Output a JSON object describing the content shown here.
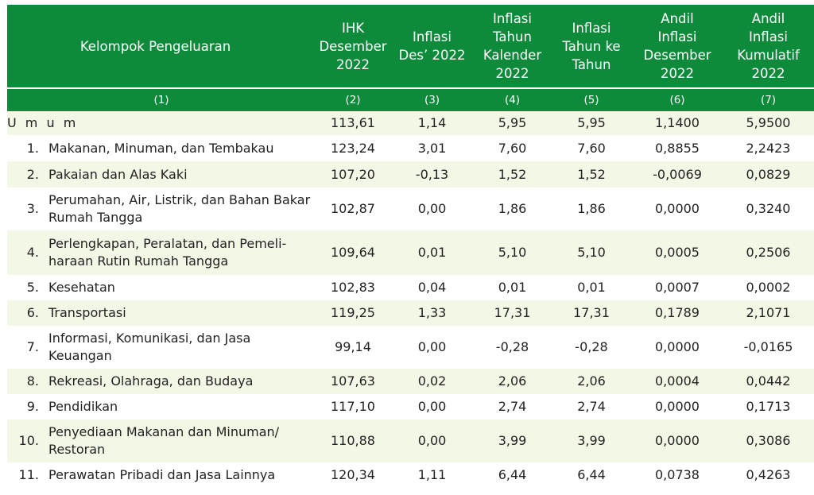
{
  "table": {
    "headers": [
      "Kelompok Pengeluaran",
      "IHK Desember 2022",
      "Inflasi Des’ 2022",
      "Inflasi Tahun Kalender 2022",
      "Inflasi Tahun ke Tahun",
      "Andil Inflasi Desember 2022",
      "Andil Inflasi Kumulatif 2022"
    ],
    "header_lines": [
      [
        "Kelompok Pengeluaran"
      ],
      [
        "IHK",
        "Desember",
        "2022"
      ],
      [
        "Inflasi",
        "Des’ 2022"
      ],
      [
        "Inflasi",
        "Tahun",
        "Kalender",
        "2022"
      ],
      [
        "Inflasi",
        "Tahun ke",
        "Tahun"
      ],
      [
        "Andil",
        "Inflasi",
        "Desember",
        "2022"
      ],
      [
        "Andil",
        "Inflasi",
        "Kumulatif",
        "2022"
      ]
    ],
    "col_numbers": [
      "(1)",
      "(2)",
      "(3)",
      "(4)",
      "(5)",
      "(6)",
      "(7)"
    ],
    "rows": [
      {
        "no": "",
        "label": "U m u m",
        "values": [
          "113,61",
          "1,14",
          "5,95",
          "5,95",
          "1,1400",
          "5,9500"
        ]
      },
      {
        "no": "1.",
        "label": "Makanan, Minuman, dan Tembakau",
        "values": [
          "123,24",
          "3,01",
          "7,60",
          "7,60",
          "0,8855",
          "2,2423"
        ]
      },
      {
        "no": "2.",
        "label": "Pakaian dan Alas Kaki",
        "values": [
          "107,20",
          "-0,13",
          "1,52",
          "1,52",
          "-0,0069",
          "0,0829"
        ]
      },
      {
        "no": "3.",
        "label": "Perumahan, Air, Listrik, dan Bahan Bakar Rumah Tangga",
        "values": [
          "102,87",
          "0,00",
          "1,86",
          "1,86",
          "0,0000",
          "0,3240"
        ]
      },
      {
        "no": "4.",
        "label": "Perlengkapan, Peralatan, dan Pemeli-haraan Rutin Rumah Tangga",
        "values": [
          "109,64",
          "0,01",
          "5,10",
          "5,10",
          "0,0005",
          "0,2506"
        ]
      },
      {
        "no": "5.",
        "label": "Kesehatan",
        "values": [
          "102,83",
          "0,04",
          "0,01",
          "0,01",
          "0,0007",
          "0,0002"
        ]
      },
      {
        "no": "6.",
        "label": "Transportasi",
        "values": [
          "119,25",
          "1,33",
          "17,31",
          "17,31",
          "0,1789",
          "2,1071"
        ]
      },
      {
        "no": "7.",
        "label": "Informasi, Komunikasi, dan Jasa Keuangan",
        "values": [
          "99,14",
          "0,00",
          "-0,28",
          "-0,28",
          "0,0000",
          "-0,0165"
        ]
      },
      {
        "no": "8.",
        "label": "Rekreasi, Olahraga, dan Budaya",
        "values": [
          "107,63",
          "0,02",
          "2,06",
          "2,06",
          "0,0004",
          "0,0442"
        ]
      },
      {
        "no": "9.",
        "label": "Pendidikan",
        "values": [
          "117,10",
          "0,00",
          "2,74",
          "2,74",
          "0,0000",
          "0,1713"
        ]
      },
      {
        "no": "10.",
        "label": "Penyediaan Makanan dan Minuman/ Restoran",
        "values": [
          "110,88",
          "0,00",
          "3,99",
          "3,99",
          "0,0000",
          "0,3086"
        ]
      },
      {
        "no": "11.",
        "label": "Perawatan Pribadi dan Jasa Lainnya",
        "values": [
          "120,34",
          "1,11",
          "6,44",
          "6,44",
          "0,0738",
          "0,4263"
        ]
      }
    ],
    "colors": {
      "header_bg": "#0e8a3b",
      "stripe_bg": "#f3f7e6",
      "header_text": "#ffffff"
    }
  }
}
